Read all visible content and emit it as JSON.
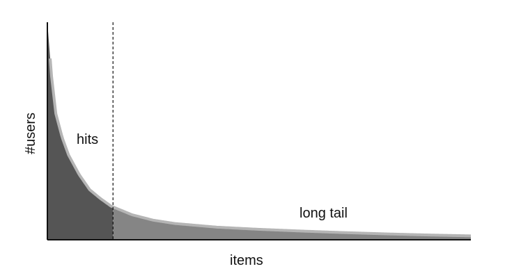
{
  "chart_data": {
    "type": "area",
    "title": "",
    "xlabel": "items",
    "ylabel": "#users",
    "grid": false,
    "legend": "none",
    "curve_shape": "power-law decay",
    "x_normalized": [
      0.0,
      0.01,
      0.02,
      0.035,
      0.05,
      0.075,
      0.1,
      0.125,
      0.15,
      0.2,
      0.25,
      0.3,
      0.4,
      0.5,
      0.6,
      0.7,
      0.8,
      0.9,
      1.0
    ],
    "y_normalized": [
      1.0,
      0.75,
      0.58,
      0.47,
      0.39,
      0.3,
      0.23,
      0.19,
      0.155,
      0.115,
      0.09,
      0.075,
      0.058,
      0.048,
      0.04,
      0.033,
      0.027,
      0.022,
      0.018
    ],
    "split_x": 0.155,
    "regions": [
      {
        "label": "hits",
        "color": "#555555"
      },
      {
        "label": "long tail",
        "color": "#858585"
      }
    ],
    "edge_color": "#b5b5b5",
    "axis_color": "#111111",
    "divider_style": "dashed"
  }
}
